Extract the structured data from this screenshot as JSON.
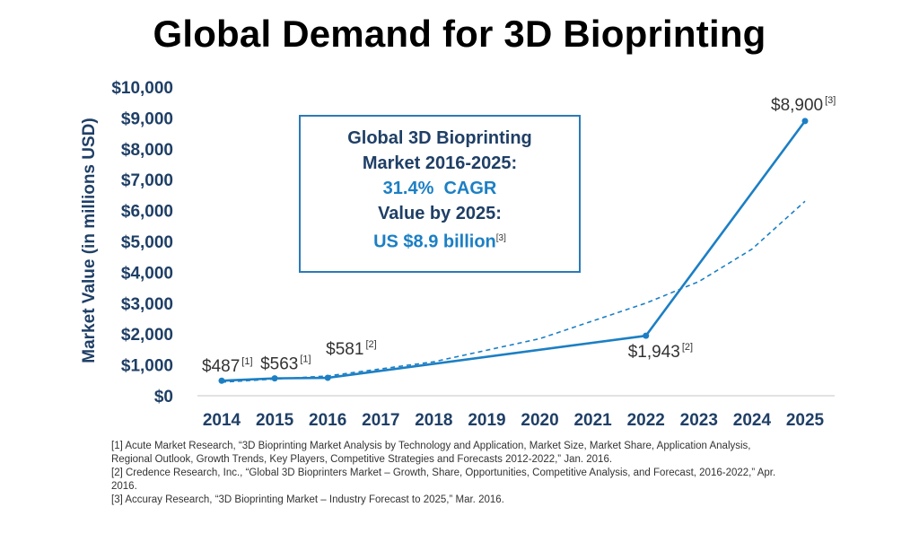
{
  "chart_data": {
    "type": "line",
    "title": "Global Demand for 3D Bioprinting",
    "xlabel": "",
    "ylabel": "Market Value (in millions USD)",
    "ylim": [
      0,
      10000
    ],
    "x": [
      2014,
      2015,
      2016,
      2017,
      2018,
      2019,
      2020,
      2021,
      2022,
      2023,
      2024,
      2025
    ],
    "y_ticks": [
      "$0",
      "$1,000",
      "$2,000",
      "$3,000",
      "$4,000",
      "$5,000",
      "$6,000",
      "$7,000",
      "$8,000",
      "$9,000",
      "$10,000"
    ],
    "series": [
      {
        "points": [
          {
            "x": 2014,
            "y": 487,
            "label": "$487",
            "ref": "[1]"
          },
          {
            "x": 2015,
            "y": 563,
            "label": "$563",
            "ref": "[1]"
          },
          {
            "x": 2016,
            "y": 581,
            "label": "$581",
            "ref": "[2]"
          },
          {
            "x": 2022,
            "y": 1943,
            "label": "$1,943",
            "ref": "[2]"
          },
          {
            "x": 2025,
            "y": 8900,
            "label": "$8,900",
            "ref": "[3]"
          }
        ],
        "color": "#1c7fc4",
        "style": "solid"
      },
      {
        "points": [
          {
            "x": 2014,
            "y": 440
          },
          {
            "x": 2016,
            "y": 640
          },
          {
            "x": 2018,
            "y": 1100
          },
          {
            "x": 2020,
            "y": 1850
          },
          {
            "x": 2022,
            "y": 3000
          },
          {
            "x": 2023,
            "y": 3700
          },
          {
            "x": 2024,
            "y": 4750
          },
          {
            "x": 2025,
            "y": 6300
          }
        ],
        "color": "#1c7fc4",
        "style": "dashed"
      }
    ],
    "grid": false
  },
  "callout": {
    "line1": "Global 3D Bioprinting",
    "line2": "Market 2016-2025:",
    "line3": "31.4%  CAGR",
    "line4": "Value by 2025:",
    "line5": "US $8.9 billion",
    "ref": "[3]",
    "dark_color": "#1f3f66",
    "blue_color": "#1c7fc4"
  },
  "footnotes": {
    "f1": "[1] Acute Market Research, “3D Bioprinting Market Analysis by Technology and Application, Market Size, Market Share, Application Analysis, Regional Outlook, Growth Trends, Key Players, Competitive Strategies and Forecasts 2012-2022,” Jan. 2016.",
    "f2": "[2] Credence Research, Inc., “Global 3D Bioprinters Market – Growth, Share, Opportunities, Competitive Analysis, and Forecast, 2016-2022,” Apr. 2016.",
    "f3": "[3] Accuray Research, “3D Bioprinting Market – Industry Forecast to 2025,” Mar. 2016."
  }
}
